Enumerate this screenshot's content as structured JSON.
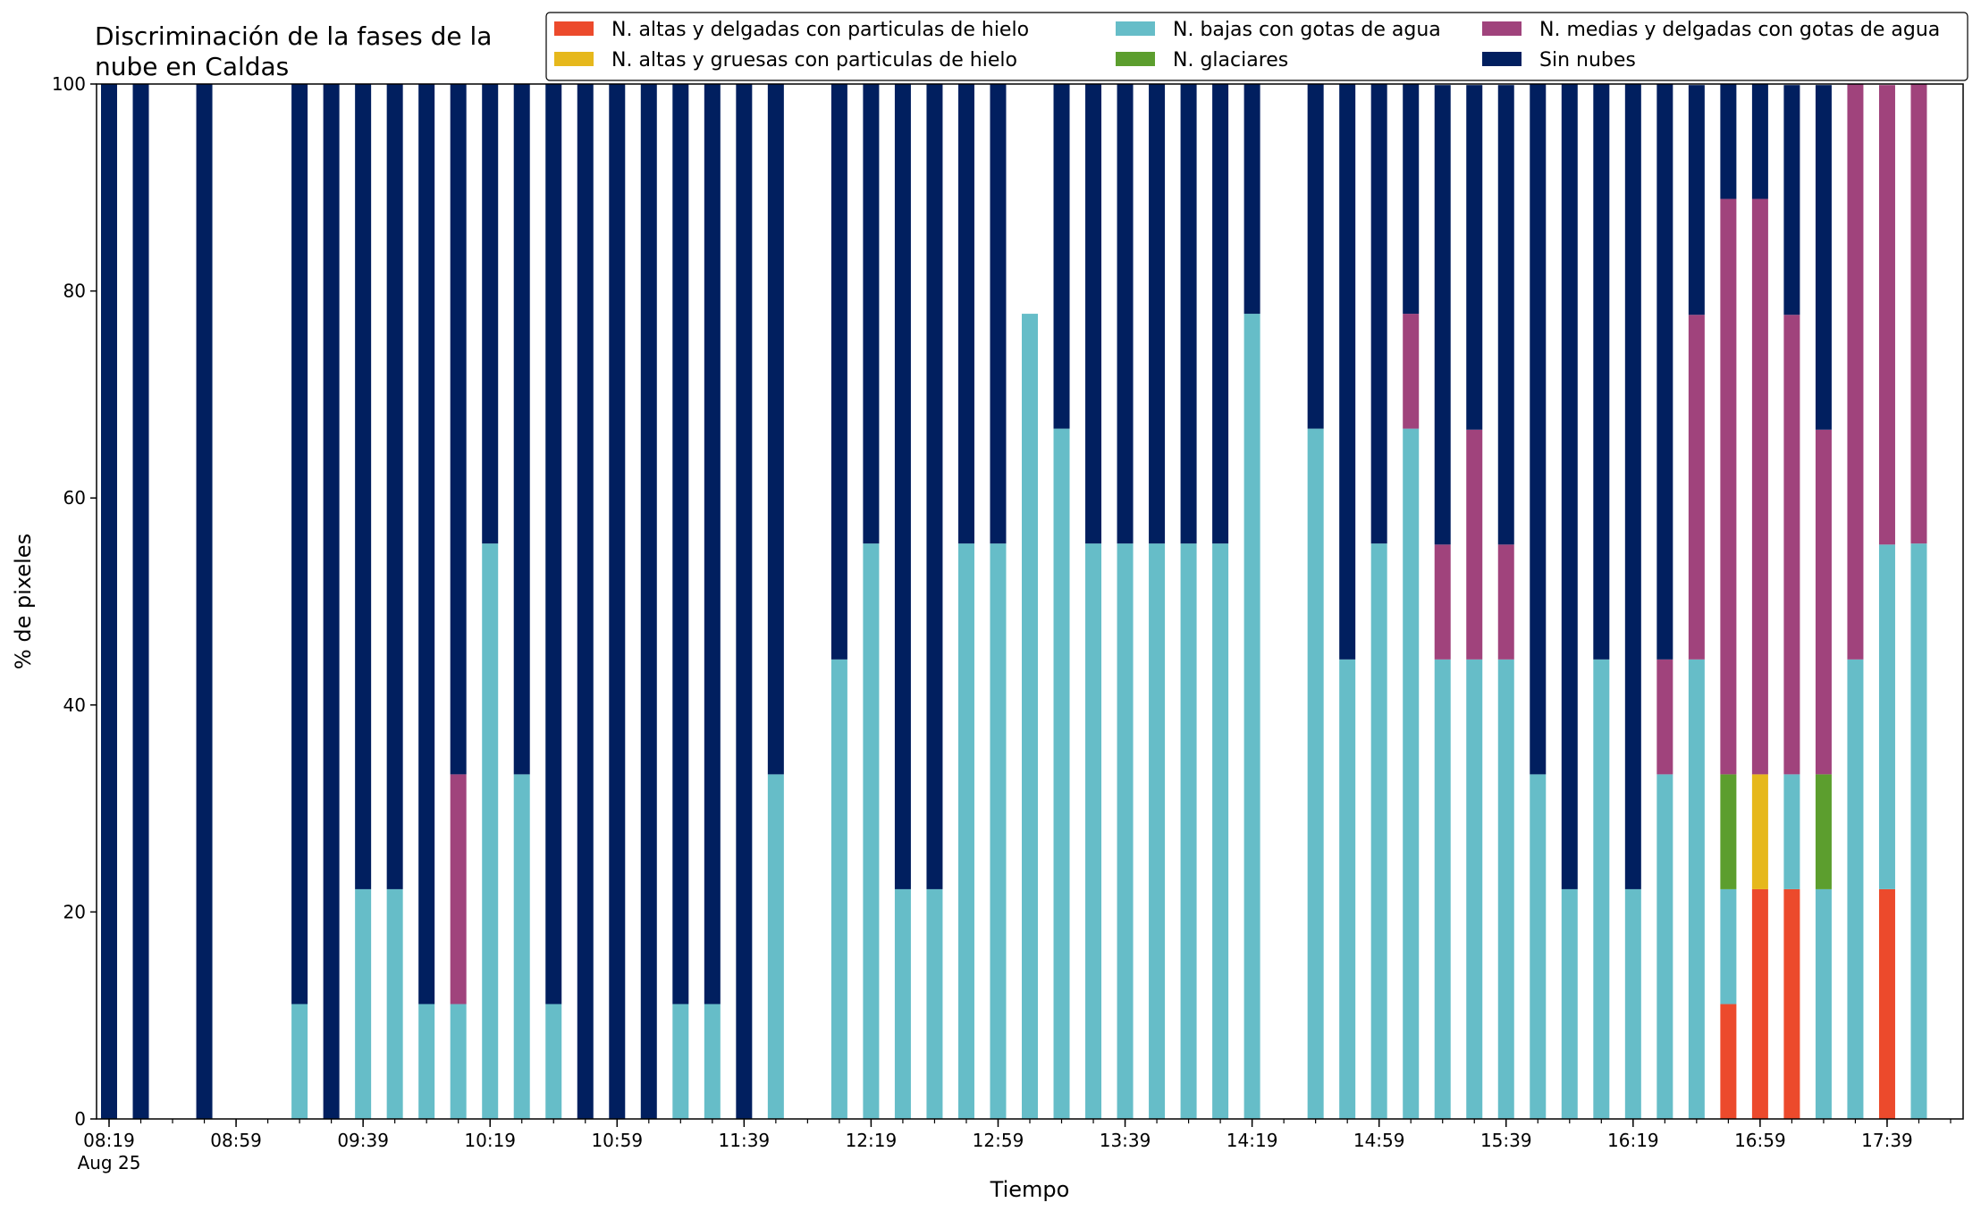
{
  "chart_data": {
    "type": "bar",
    "stacked": true,
    "title_lines": [
      "Discriminación de la fases de la",
      "nube en Caldas"
    ],
    "xlabel": "Tiempo",
    "ylabel": "% de pixeles",
    "ylim": [
      0,
      100
    ],
    "yticks": [
      "0",
      "20",
      "40",
      "60",
      "80",
      "100"
    ],
    "xticks": [
      "08:19",
      "08:59",
      "09:39",
      "10:19",
      "10:59",
      "11:39",
      "12:19",
      "12:59",
      "13:39",
      "14:19",
      "14:59",
      "15:39",
      "16:19",
      "16:59",
      "17:39"
    ],
    "xtick_sublabel": "Aug 25",
    "grid": false,
    "legend_position": "top-right",
    "colors": {
      "altas_delgadas": "#ec4a2c",
      "altas_gruesas": "#e6b81c",
      "bajas": "#66bdc8",
      "glaciares": "#5c9e2e",
      "medias": "#a0437c",
      "sin_nubes": "#011f5f"
    },
    "legend": [
      {
        "key": "altas_delgadas",
        "label": "N. altas y delgadas con particulas de hielo"
      },
      {
        "key": "altas_gruesas",
        "label": "N. altas y gruesas con particulas de hielo"
      },
      {
        "key": "bajas",
        "label": "N. bajas con gotas de agua"
      },
      {
        "key": "glaciares",
        "label": "N. glaciares"
      },
      {
        "key": "medias",
        "label": "N. medias y delgadas con gotas de agua"
      },
      {
        "key": "sin_nubes",
        "label": "Sin nubes"
      }
    ],
    "stack_order": [
      "altas_delgadas",
      "altas_gruesas",
      "bajas",
      "glaciares",
      "medias",
      "sin_nubes"
    ],
    "time_start": "08:19",
    "time_step_minutes": 10,
    "periods": 59,
    "bars": [
      {
        "time": "08:19",
        "sin_nubes": 100
      },
      {
        "time": "08:29",
        "sin_nubes": 100
      },
      {
        "time": "08:49",
        "sin_nubes": 100
      },
      {
        "time": "09:19",
        "bajas": 11.1,
        "sin_nubes": 88.9
      },
      {
        "time": "09:29",
        "sin_nubes": 100
      },
      {
        "time": "09:39",
        "bajas": 22.2,
        "sin_nubes": 77.8
      },
      {
        "time": "09:49",
        "bajas": 22.2,
        "sin_nubes": 77.8
      },
      {
        "time": "09:59",
        "bajas": 11.1,
        "sin_nubes": 88.9
      },
      {
        "time": "10:09",
        "bajas": 11.1,
        "medias": 22.2,
        "sin_nubes": 66.7
      },
      {
        "time": "10:19",
        "bajas": 55.6,
        "sin_nubes": 44.4
      },
      {
        "time": "10:29",
        "bajas": 33.3,
        "sin_nubes": 66.7
      },
      {
        "time": "10:39",
        "bajas": 11.1,
        "sin_nubes": 88.9
      },
      {
        "time": "10:49",
        "sin_nubes": 100
      },
      {
        "time": "10:59",
        "sin_nubes": 100
      },
      {
        "time": "11:09",
        "sin_nubes": 100
      },
      {
        "time": "11:19",
        "bajas": 11.1,
        "sin_nubes": 88.9
      },
      {
        "time": "11:29",
        "bajas": 11.1,
        "sin_nubes": 88.9
      },
      {
        "time": "11:39",
        "sin_nubes": 100
      },
      {
        "time": "11:49",
        "bajas": 33.3,
        "sin_nubes": 66.7
      },
      {
        "time": "12:09",
        "bajas": 44.4,
        "sin_nubes": 55.6
      },
      {
        "time": "12:19",
        "bajas": 55.6,
        "sin_nubes": 44.4
      },
      {
        "time": "12:29",
        "bajas": 22.2,
        "sin_nubes": 77.8
      },
      {
        "time": "12:39",
        "bajas": 22.2,
        "sin_nubes": 77.8
      },
      {
        "time": "12:49",
        "bajas": 55.6,
        "sin_nubes": 44.4
      },
      {
        "time": "12:59",
        "bajas": 55.6,
        "sin_nubes": 44.4
      },
      {
        "time": "13:09",
        "bajas": 77.8
      },
      {
        "time": "13:19",
        "bajas": 66.7,
        "sin_nubes": 33.3
      },
      {
        "time": "13:29",
        "bajas": 55.6,
        "sin_nubes": 44.4
      },
      {
        "time": "13:39",
        "bajas": 55.6,
        "sin_nubes": 44.4
      },
      {
        "time": "13:49",
        "bajas": 55.6,
        "sin_nubes": 44.4
      },
      {
        "time": "13:59",
        "bajas": 55.6,
        "sin_nubes": 44.4
      },
      {
        "time": "14:09",
        "bajas": 55.6,
        "sin_nubes": 44.4
      },
      {
        "time": "14:19",
        "bajas": 77.8,
        "sin_nubes": 22.2
      },
      {
        "time": "14:39",
        "bajas": 66.7,
        "sin_nubes": 33.3
      },
      {
        "time": "14:49",
        "bajas": 44.4,
        "sin_nubes": 55.6
      },
      {
        "time": "14:59",
        "bajas": 55.6,
        "sin_nubes": 44.4
      },
      {
        "time": "15:09",
        "bajas": 66.7,
        "medias": 11.1,
        "sin_nubes": 22.2
      },
      {
        "time": "15:19",
        "bajas": 44.4,
        "medias": 11.1,
        "sin_nubes": 44.4
      },
      {
        "time": "15:29",
        "bajas": 44.4,
        "medias": 22.2,
        "sin_nubes": 33.3
      },
      {
        "time": "15:39",
        "bajas": 44.4,
        "medias": 11.1,
        "sin_nubes": 44.4
      },
      {
        "time": "15:49",
        "bajas": 33.3,
        "sin_nubes": 66.7
      },
      {
        "time": "15:59",
        "bajas": 22.2,
        "sin_nubes": 77.8
      },
      {
        "time": "16:09",
        "bajas": 44.4,
        "sin_nubes": 55.6
      },
      {
        "time": "16:19",
        "bajas": 22.2,
        "sin_nubes": 77.8
      },
      {
        "time": "16:29",
        "bajas": 33.3,
        "medias": 11.1,
        "sin_nubes": 55.6
      },
      {
        "time": "16:39",
        "bajas": 44.4,
        "medias": 33.3,
        "sin_nubes": 22.2
      },
      {
        "time": "16:49",
        "altas_delgadas": 11.1,
        "bajas": 11.1,
        "glaciares": 11.1,
        "medias": 55.6,
        "sin_nubes": 11.1
      },
      {
        "time": "16:59",
        "altas_delgadas": 22.2,
        "altas_gruesas": 11.1,
        "medias": 55.6,
        "sin_nubes": 11.1
      },
      {
        "time": "17:09",
        "altas_delgadas": 22.2,
        "bajas": 11.1,
        "medias": 44.4,
        "sin_nubes": 22.2
      },
      {
        "time": "17:19",
        "bajas": 22.2,
        "glaciares": 11.1,
        "medias": 33.3,
        "sin_nubes": 33.3
      },
      {
        "time": "17:29",
        "bajas": 44.4,
        "medias": 55.6
      },
      {
        "time": "17:39",
        "altas_delgadas": 22.2,
        "bajas": 33.3,
        "medias": 44.4
      },
      {
        "time": "17:49",
        "bajas": 55.6,
        "medias": 44.4
      }
    ]
  }
}
